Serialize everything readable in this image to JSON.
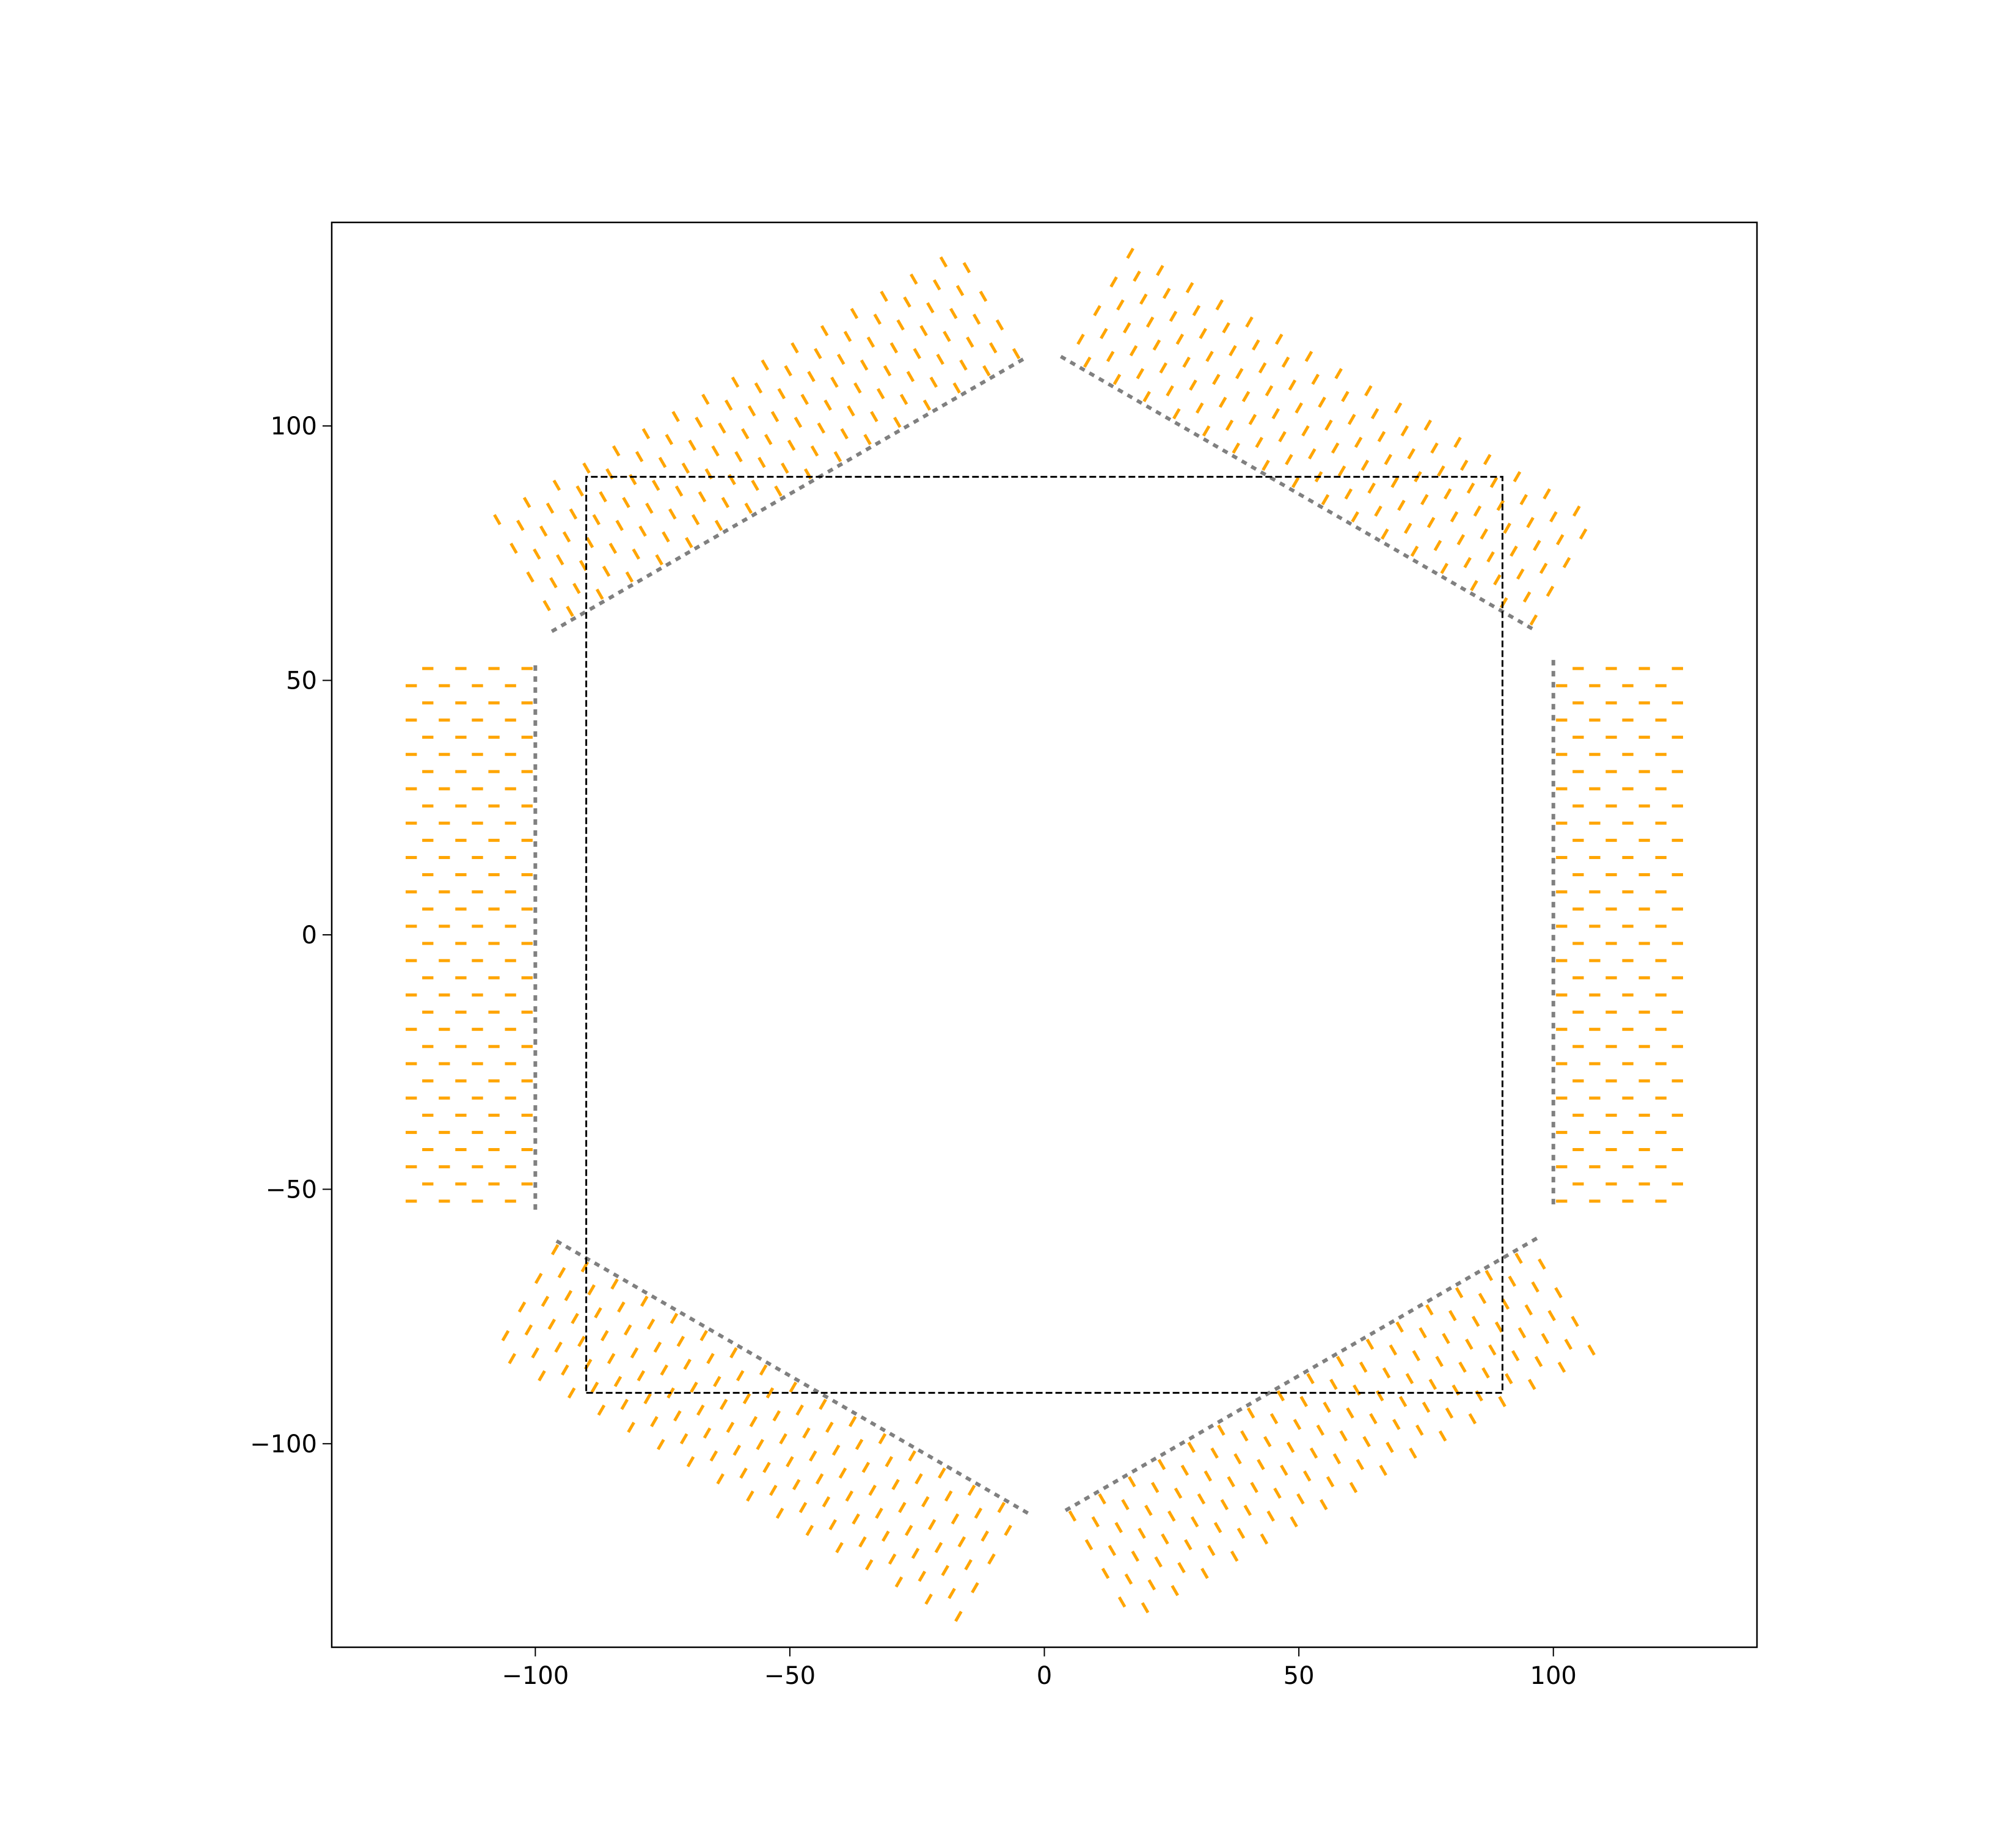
{
  "chart_data": {
    "type": "scatter",
    "title": "",
    "xlabel": "",
    "ylabel": "",
    "xlim": [
      -140,
      140
    ],
    "ylim": [
      -140,
      140
    ],
    "x_ticks": [
      -100,
      -50,
      0,
      50,
      100
    ],
    "x_tick_labels": [
      "−100",
      "−50",
      "0",
      "50",
      "100"
    ],
    "y_ticks": [
      100,
      50,
      0,
      -50,
      -100
    ],
    "y_tick_labels": [
      "100",
      "50",
      "0",
      "−50",
      "−100"
    ],
    "grid": false,
    "legend": "none",
    "colors": {
      "modules": "#ffa500",
      "inner_boundary": "#808080",
      "square": "#000000",
      "frame": "#000000"
    },
    "reference_square": {
      "style": "dashed",
      "x": [
        -90,
        90,
        90,
        -90,
        -90
      ],
      "y": [
        -90,
        -90,
        90,
        90,
        -90
      ]
    },
    "hexagon_modules": {
      "count": 6,
      "inner_radius": 100,
      "module_width": 108,
      "module_depth": 26,
      "module_centers_deg": [
        0,
        60,
        120,
        180,
        240,
        300
      ],
      "pattern": "staggered dashed segments",
      "rows": 8,
      "dash_count": 16
    }
  }
}
